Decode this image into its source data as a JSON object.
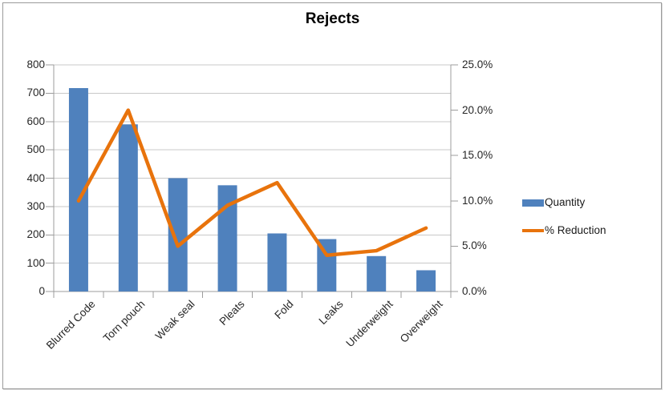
{
  "chart_data": {
    "type": "combo",
    "title": "Rejects",
    "categories": [
      "Blurred Code",
      "Torn pouch",
      "Weak seal",
      "Pleats",
      "Fold",
      "Leaks",
      "Underweight",
      "Overweight"
    ],
    "series": [
      {
        "name": "Quantity",
        "type": "bar",
        "axis": "left",
        "values": [
          718,
          590,
          400,
          375,
          205,
          185,
          125,
          75
        ]
      },
      {
        "name": "% Reduction",
        "type": "line",
        "axis": "right",
        "values_percent": [
          10.0,
          20.0,
          5.0,
          9.5,
          12.0,
          4.0,
          4.5,
          7.0
        ]
      }
    ],
    "left_axis": {
      "min": 0,
      "max": 800,
      "tick_labels": [
        "800",
        "700",
        "600",
        "500",
        "400",
        "300",
        "200",
        "100",
        "0"
      ]
    },
    "right_axis": {
      "min_percent": 0,
      "max_percent": 25,
      "tick_labels": [
        "25.0%",
        "20.0%",
        "15.0%",
        "10.0%",
        "5.0%",
        "0.0%"
      ]
    },
    "grid": "horizontal",
    "legend_position": "right"
  },
  "legend": {
    "items": [
      {
        "label": "Quantity"
      },
      {
        "label": "% Reduction"
      }
    ]
  },
  "colors": {
    "bar_fill": "#4F81BD",
    "line_stroke": "#E8730C",
    "gridline": "#C8C8C8",
    "axis_line": "#9C9C9C",
    "tick_text": "#262626",
    "title_text": "#000000",
    "frame_border": "#9B9B9B"
  }
}
